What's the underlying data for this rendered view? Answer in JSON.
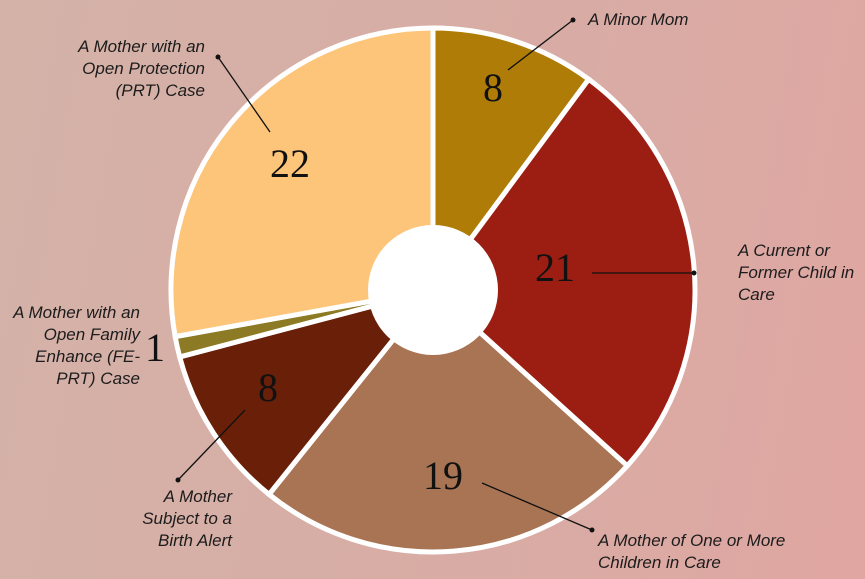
{
  "chart_data": {
    "type": "pie",
    "categories": [
      "A Minor Mom",
      "A Current or Former Child in Care",
      "A Mother of One or More Children in Care",
      "A Mother Subject to a Birth Alert",
      "A Mother with an Open Family Enhance (FE-PRT) Case",
      "A Mother with an Open Protection (PRT) Case"
    ],
    "values": [
      8,
      21,
      19,
      8,
      1,
      22
    ],
    "colors": [
      "#b07c08",
      "#9c1e12",
      "#a87454",
      "#6a2008",
      "#8c7b24",
      "#fdc57a"
    ]
  }
}
